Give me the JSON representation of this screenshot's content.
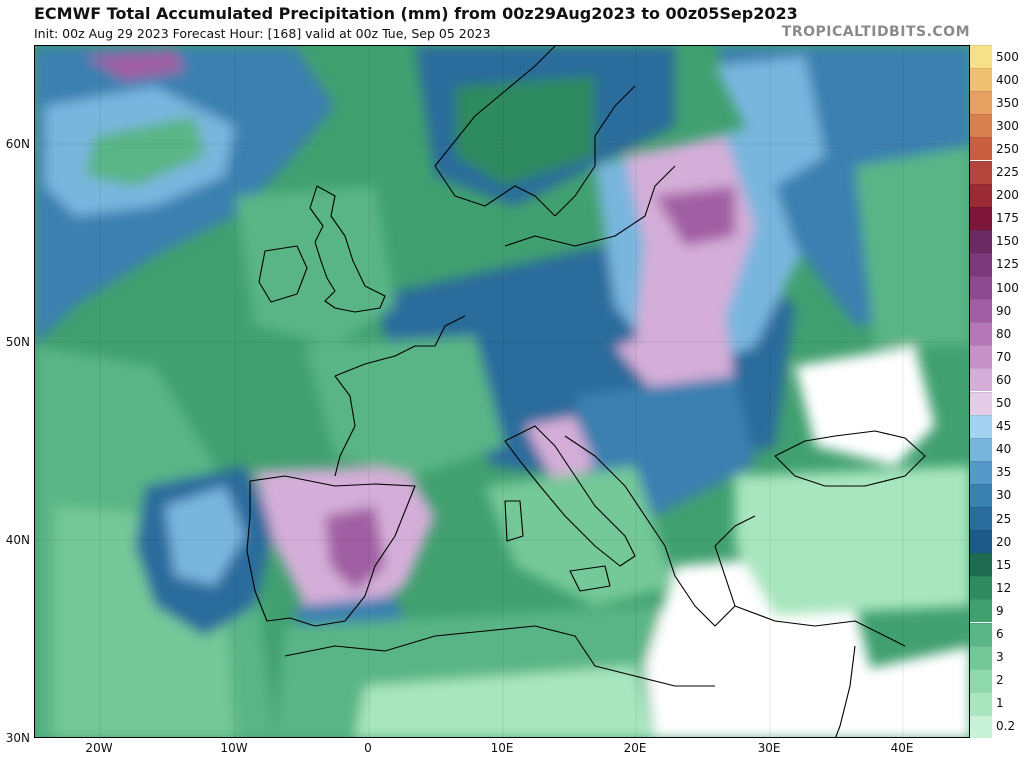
{
  "header": {
    "title": "ECMWF Total Accumulated Precipitation (mm) from 00z29Aug2023 to 00z05Sep2023",
    "subtitle": "Init: 00z Aug 29 2023   Forecast Hour: [168]   valid at 00z Tue, Sep 05 2023",
    "brand": "TROPICALTIDBITS.COM"
  },
  "axes": {
    "lat_labels": [
      "60N",
      "50N",
      "40N",
      "30N"
    ],
    "lon_labels": [
      "20W",
      "10W",
      "0",
      "10E",
      "20E",
      "30E",
      "40E"
    ],
    "lat_values": [
      60,
      50,
      40,
      30
    ],
    "lon_values": [
      -20,
      -10,
      0,
      10,
      20,
      30,
      40
    ]
  },
  "colorbar": {
    "levels": [
      "0.2",
      "1",
      "2",
      "3",
      "6",
      "9",
      "12",
      "15",
      "20",
      "25",
      "30",
      "35",
      "40",
      "45",
      "50",
      "60",
      "70",
      "80",
      "90",
      "100",
      "125",
      "150",
      "175",
      "200",
      "225",
      "250",
      "300",
      "350",
      "400",
      "500"
    ],
    "colors": [
      "#c8f2d8",
      "#a8e6c0",
      "#8ed8ab",
      "#74c898",
      "#5ab586",
      "#41a070",
      "#2f8a5f",
      "#1f6b52",
      "#1d5a88",
      "#2a6c9c",
      "#3a80b0",
      "#5599c8",
      "#79b6de",
      "#a3d3f0",
      "#e4cde6",
      "#d4aed8",
      "#c592c8",
      "#b478b6",
      "#a15ea3",
      "#8c4a8f",
      "#7a3a7a",
      "#6a2b63",
      "#7c1538",
      "#9a2a34",
      "#b4453a",
      "#c85f40",
      "#d98050",
      "#e6a060",
      "#eec070",
      "#f6e08a"
    ]
  },
  "map_colors": {
    "background": "#ffffff",
    "light_green": "#a8e6c0",
    "mid_green": "#5ab586",
    "dark_green": "#2f8a5f",
    "deep_green": "#1f6b52",
    "blue": "#2a6c9c",
    "light_blue": "#79b6de",
    "lavender": "#d4aed8",
    "purple": "#a15ea3",
    "border": "#000000"
  }
}
